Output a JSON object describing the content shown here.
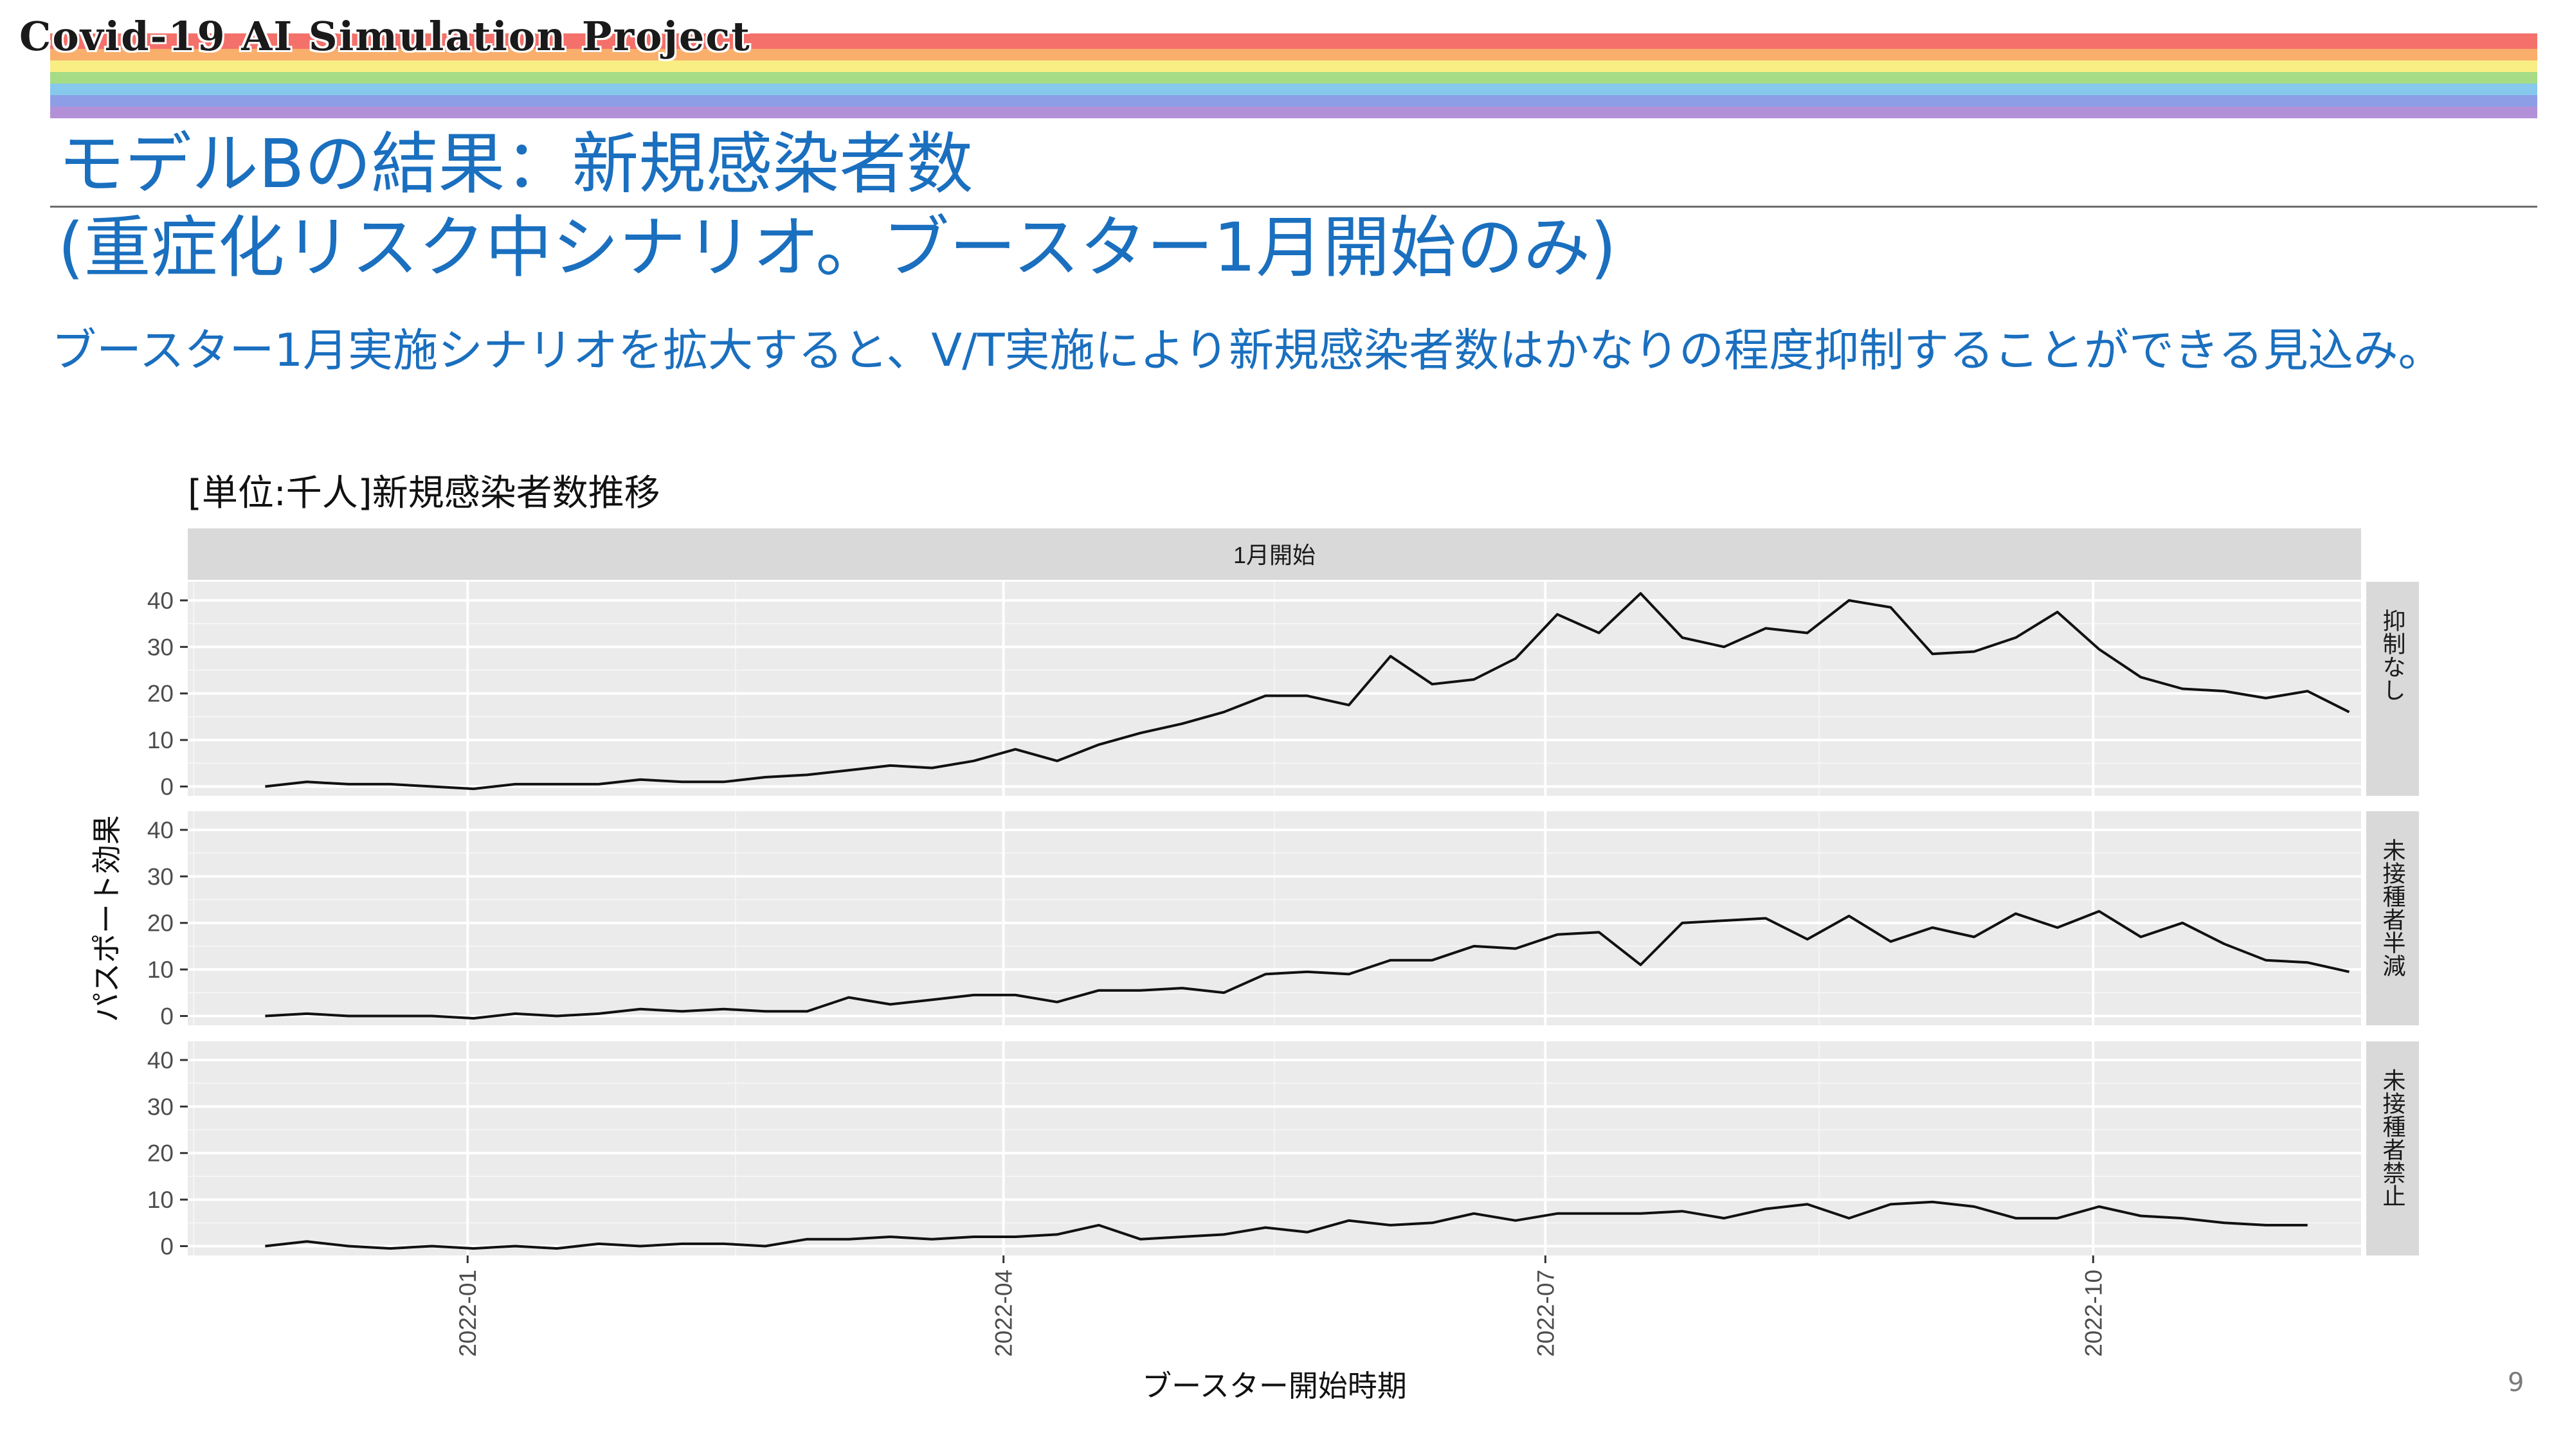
{
  "header": {
    "banner_text": "Covid-19 AI Simulation Project",
    "stripe_colors": [
      "#f4706a",
      "#f9ae6c",
      "#f9ee84",
      "#a6dc86",
      "#86c9ec",
      "#8d9ee6",
      "#b391d8"
    ]
  },
  "slide": {
    "title_line1": "モデルBの結果：新規感染者数",
    "title_line2": "(重症化リスク中シナリオ。ブースター1月開始のみ)",
    "subtitle": "ブースター1月実施シナリオを拡大すると、V/T実施により新規感染者数はかなりの程度抑制することができる見込み。",
    "page_number": "9"
  },
  "chart_caption": "[単位:千人]新規感染者数推移",
  "chart_data": {
    "type": "line",
    "facet_title": "1月開始",
    "xlabel": "ブースター開始時期",
    "ylabel": "パスポート効果",
    "x_start": "2021-11-28",
    "x_step_days": 7,
    "xlim": [
      "2021-11-15",
      "2022-11-15"
    ],
    "xticks": [
      "2022-01",
      "2022-04",
      "2022-07",
      "2022-10"
    ],
    "ylim": [
      -2,
      44
    ],
    "yticks": [
      0,
      10,
      20,
      30,
      40
    ],
    "line_color": "#111111",
    "series": [
      {
        "name": "抑制なし",
        "values": [
          0,
          1,
          0.5,
          0.5,
          0,
          -0.5,
          0.5,
          0.5,
          0.5,
          1.5,
          1,
          1,
          2,
          2.5,
          3.5,
          4.5,
          4,
          5.5,
          8,
          5.5,
          9,
          11.5,
          13.5,
          16,
          19.5,
          19.5,
          17.5,
          28,
          22,
          23,
          27.5,
          37,
          33,
          41.5,
          32,
          30,
          34,
          33,
          40,
          38.5,
          28.5,
          29,
          32,
          37.5,
          29.5,
          23.5,
          21,
          20.5,
          19,
          20.5,
          16
        ]
      },
      {
        "name": "未接種者半減",
        "values": [
          0,
          0.5,
          0,
          0,
          0,
          -0.5,
          0.5,
          0,
          0.5,
          1.5,
          1,
          1.5,
          1,
          1,
          4,
          2.5,
          3.5,
          4.5,
          4.5,
          3,
          5.5,
          5.5,
          6,
          5,
          9,
          9.5,
          9,
          12,
          12,
          15,
          14.5,
          17.5,
          18,
          11,
          20,
          20.5,
          21,
          16.5,
          21.5,
          16,
          19,
          17,
          22,
          19,
          22.5,
          17,
          20,
          15.5,
          12,
          11.5,
          9.5
        ]
      },
      {
        "name": "未接種者禁止",
        "values": [
          0,
          1,
          0,
          -0.5,
          0,
          -0.5,
          0,
          -0.5,
          0.5,
          0,
          0.5,
          0.5,
          0,
          1.5,
          1.5,
          2,
          1.5,
          2,
          2,
          2.5,
          4.5,
          1.5,
          2,
          2.5,
          4,
          3,
          5.5,
          4.5,
          5,
          7,
          5.5,
          7,
          7,
          7,
          7.5,
          6,
          8,
          9,
          6,
          9,
          9.5,
          8.5,
          6,
          6,
          8.5,
          6.5,
          6,
          5,
          4.5,
          4.5
        ]
      }
    ]
  }
}
